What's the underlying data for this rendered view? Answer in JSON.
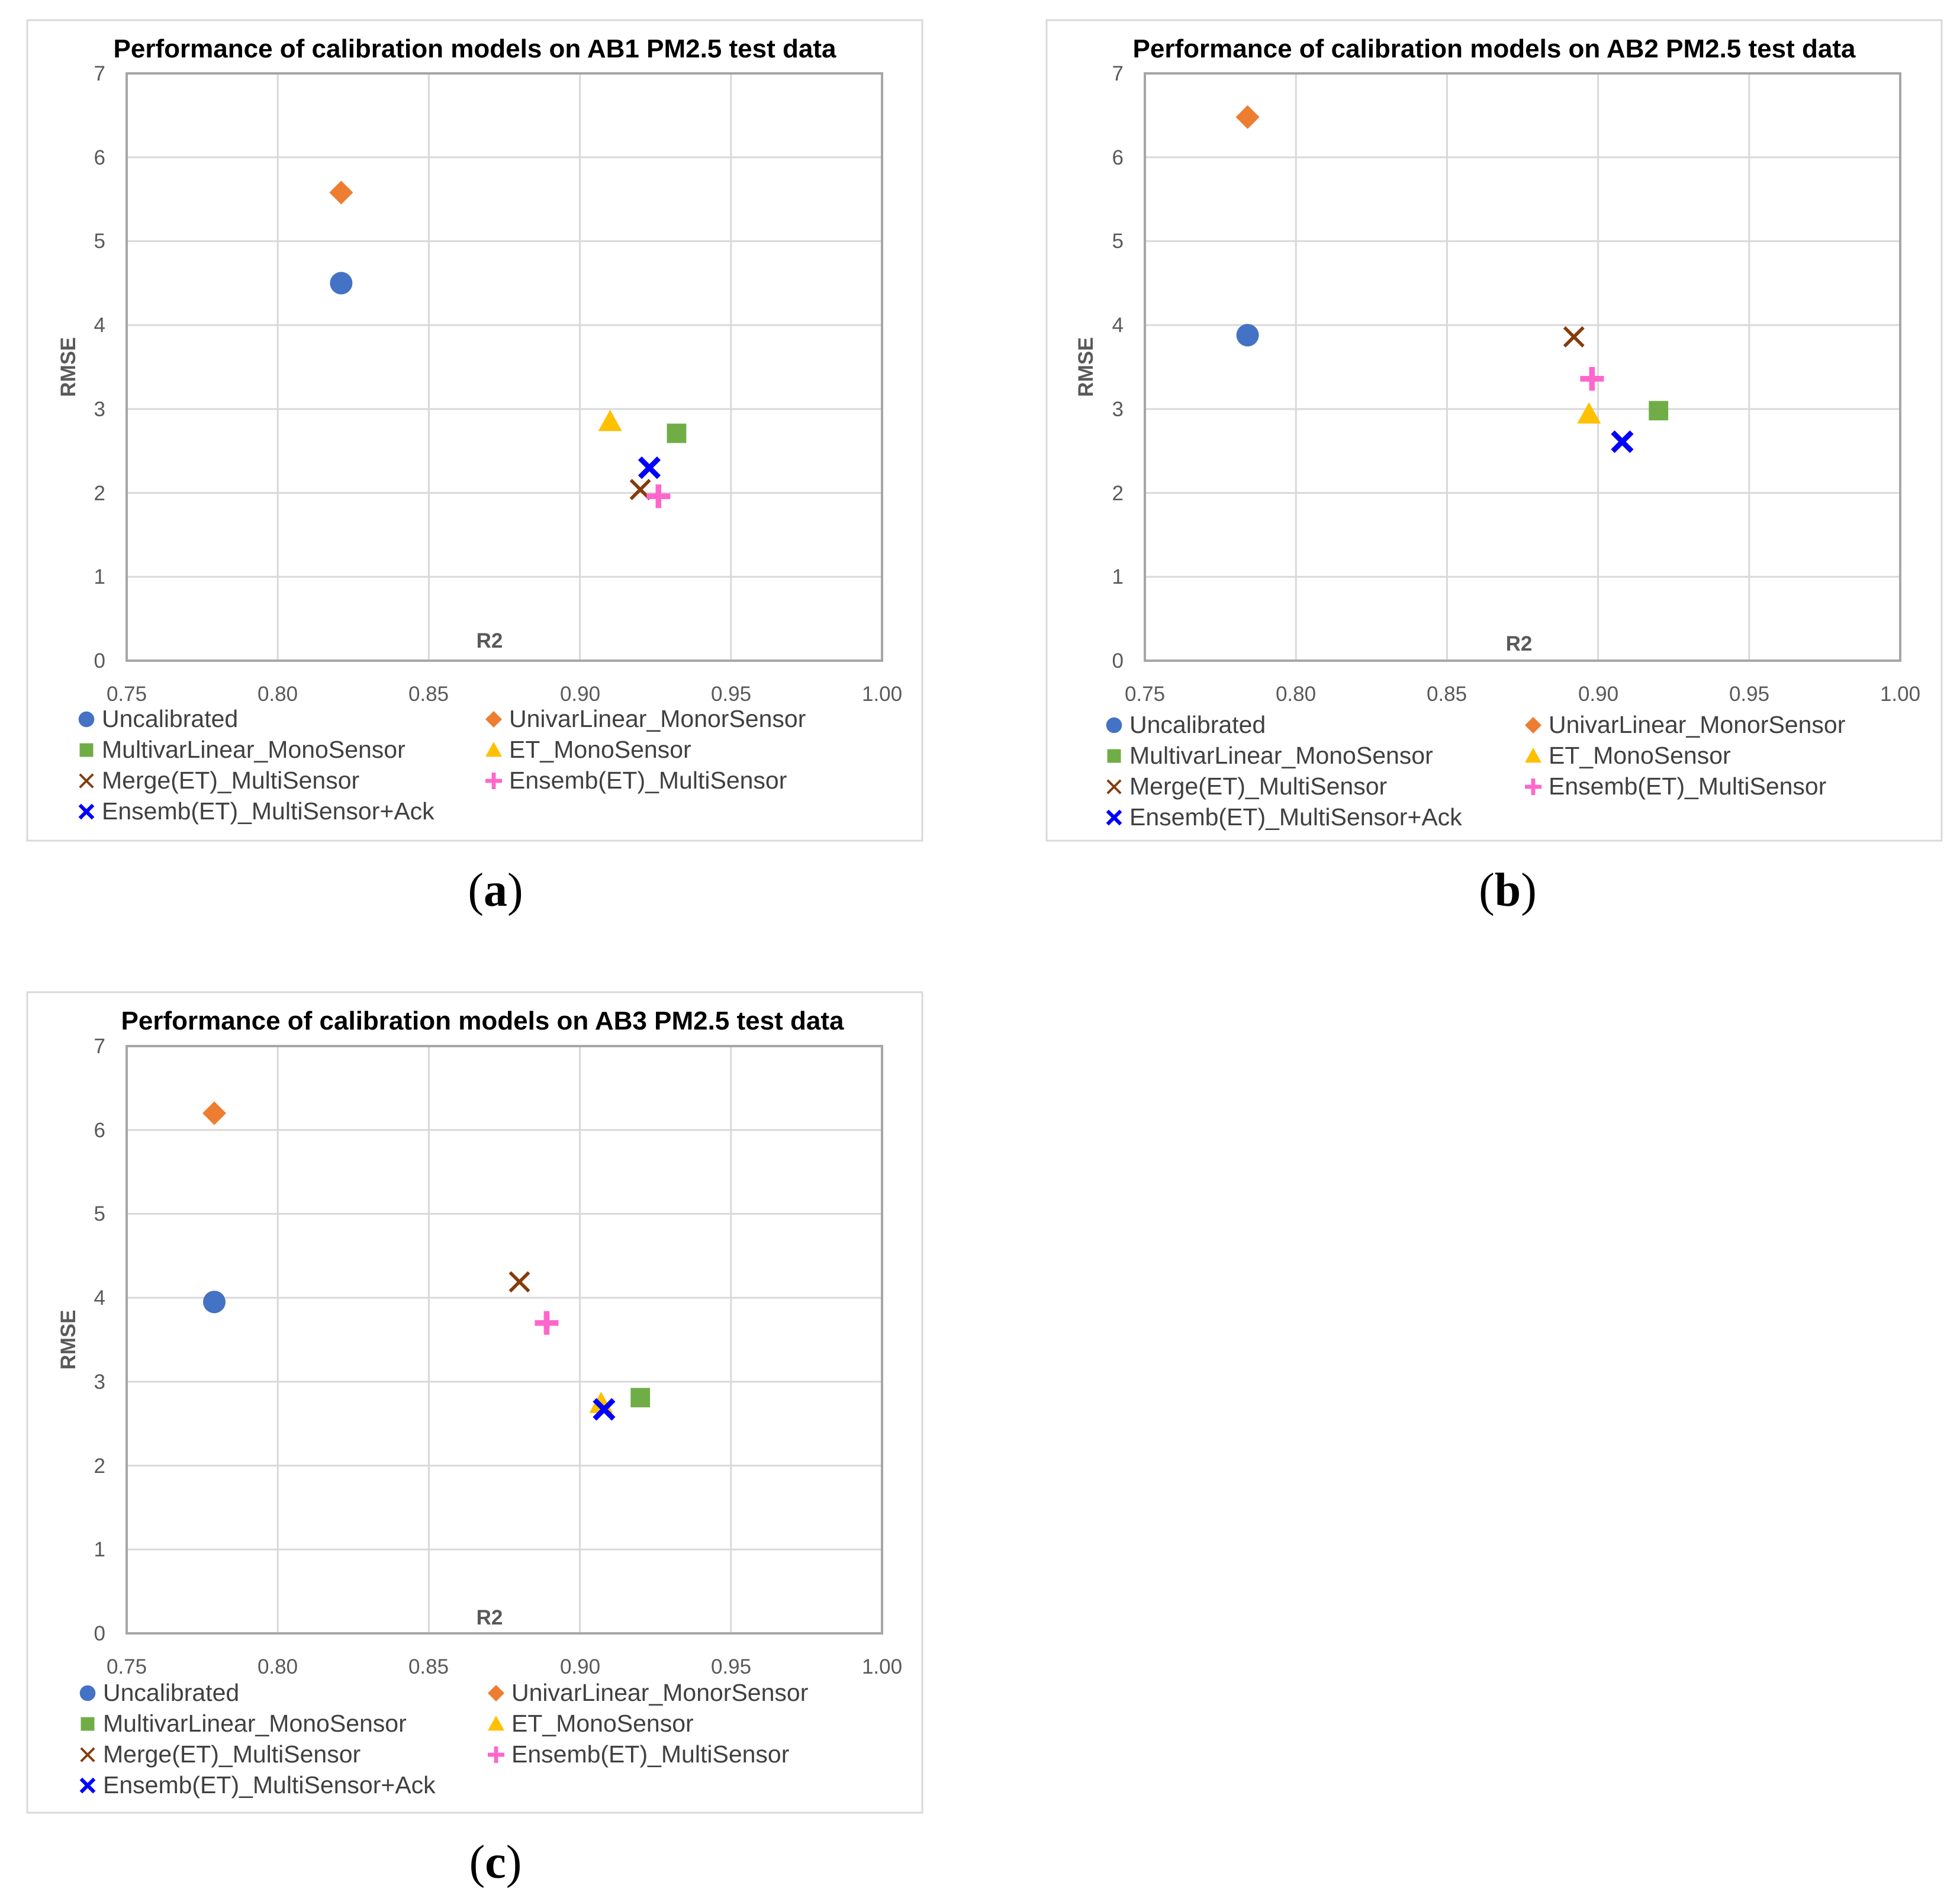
{
  "legend_items": [
    {
      "name": "Uncalibrated",
      "marker": "circle",
      "color": "#4472C4"
    },
    {
      "name": "UnivarLinear_MonorSensor",
      "marker": "diamond",
      "color": "#ED7D31"
    },
    {
      "name": "MultivarLinear_MonoSensor",
      "marker": "square",
      "color": "#70AD47"
    },
    {
      "name": "ET_MonoSensor",
      "marker": "triangle",
      "color": "#FFC000"
    },
    {
      "name": "Merge(ET)_MultiSensor",
      "marker": "x-thin",
      "color": "#843C0C"
    },
    {
      "name": "Ensemb(ET)_MultiSensor",
      "marker": "plus",
      "color": "#FF66CC"
    },
    {
      "name": "Ensemb(ET)_MultiSensor+Ack",
      "marker": "x-bold",
      "color": "#0000FF"
    }
  ],
  "chart_data": [
    {
      "type": "scatter",
      "title": "Performance of calibration models on AB1 PM2.5 test data",
      "caption": "(a)",
      "xlabel": "R2",
      "ylabel": "RMSE",
      "xlim": [
        0.75,
        1.0
      ],
      "ylim": [
        0,
        7
      ],
      "x_ticks": [
        "0.75",
        "0.80",
        "0.85",
        "0.90",
        "0.95",
        "1.00"
      ],
      "y_ticks": [
        "0",
        "1",
        "2",
        "3",
        "4",
        "5",
        "6",
        "7"
      ],
      "grid": true,
      "legend_position": "bottom",
      "series": [
        {
          "name": "Uncalibrated",
          "x": 0.821,
          "y": 4.5
        },
        {
          "name": "UnivarLinear_MonorSensor",
          "x": 0.821,
          "y": 5.58
        },
        {
          "name": "MultivarLinear_MonoSensor",
          "x": 0.932,
          "y": 2.71
        },
        {
          "name": "ET_MonoSensor",
          "x": 0.91,
          "y": 2.85
        },
        {
          "name": "Merge(ET)_MultiSensor",
          "x": 0.92,
          "y": 2.04
        },
        {
          "name": "Ensemb(ET)_MultiSensor",
          "x": 0.926,
          "y": 1.96
        },
        {
          "name": "Ensemb(ET)_MultiSensor+Ack",
          "x": 0.923,
          "y": 2.3
        }
      ]
    },
    {
      "type": "scatter",
      "title": "Performance of calibration models on AB2 PM2.5 test data",
      "caption": "(b)",
      "xlabel": "R2",
      "ylabel": "RMSE",
      "xlim": [
        0.75,
        1.0
      ],
      "ylim": [
        0,
        7
      ],
      "x_ticks": [
        "0.75",
        "0.80",
        "0.85",
        "0.90",
        "0.95",
        "1.00"
      ],
      "y_ticks": [
        "0",
        "1",
        "2",
        "3",
        "4",
        "5",
        "6",
        "7"
      ],
      "grid": true,
      "legend_position": "bottom",
      "series": [
        {
          "name": "Uncalibrated",
          "x": 0.784,
          "y": 3.88
        },
        {
          "name": "UnivarLinear_MonorSensor",
          "x": 0.784,
          "y": 6.48
        },
        {
          "name": "MultivarLinear_MonoSensor",
          "x": 0.92,
          "y": 2.98
        },
        {
          "name": "ET_MonoSensor",
          "x": 0.897,
          "y": 2.94
        },
        {
          "name": "Merge(ET)_MultiSensor",
          "x": 0.892,
          "y": 3.86
        },
        {
          "name": "Ensemb(ET)_MultiSensor",
          "x": 0.898,
          "y": 3.36
        },
        {
          "name": "Ensemb(ET)_MultiSensor+Ack",
          "x": 0.908,
          "y": 2.61
        }
      ]
    },
    {
      "type": "scatter",
      "title": "Performance of calibration models on AB3 PM2.5 test data",
      "caption": "(c)",
      "xlabel": "R2",
      "ylabel": "RMSE",
      "xlim": [
        0.75,
        1.0
      ],
      "ylim": [
        0,
        7
      ],
      "x_ticks": [
        "0.75",
        "0.80",
        "0.85",
        "0.90",
        "0.95",
        "1.00"
      ],
      "y_ticks": [
        "0",
        "1",
        "2",
        "3",
        "4",
        "5",
        "6",
        "7"
      ],
      "grid": true,
      "legend_position": "bottom",
      "series": [
        {
          "name": "Uncalibrated",
          "x": 0.779,
          "y": 3.95
        },
        {
          "name": "UnivarLinear_MonorSensor",
          "x": 0.779,
          "y": 6.2
        },
        {
          "name": "MultivarLinear_MonoSensor",
          "x": 0.92,
          "y": 2.81
        },
        {
          "name": "ET_MonoSensor",
          "x": 0.907,
          "y": 2.74
        },
        {
          "name": "Merge(ET)_MultiSensor",
          "x": 0.88,
          "y": 4.19
        },
        {
          "name": "Ensemb(ET)_MultiSensor",
          "x": 0.889,
          "y": 3.7
        },
        {
          "name": "Ensemb(ET)_MultiSensor+Ack",
          "x": 0.908,
          "y": 2.67
        }
      ]
    }
  ]
}
